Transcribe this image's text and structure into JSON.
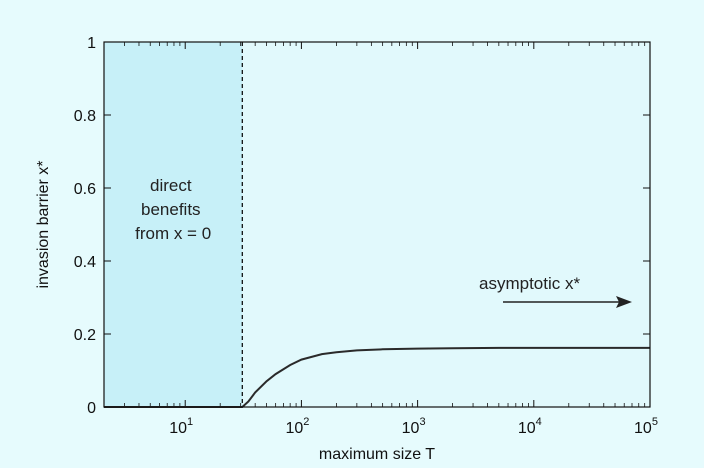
{
  "chart_data": {
    "type": "line",
    "title": "",
    "xlabel": "maximum size T",
    "ylabel": "invasion barrier x*",
    "x_scale": "log",
    "xlim": [
      2,
      100000
    ],
    "ylim": [
      0,
      1
    ],
    "x_ticks": [
      {
        "value": 10,
        "base": "10",
        "exp": "1"
      },
      {
        "value": 100,
        "base": "10",
        "exp": "2"
      },
      {
        "value": 1000,
        "base": "10",
        "exp": "3"
      },
      {
        "value": 10000,
        "base": "10",
        "exp": "4"
      },
      {
        "value": 100000,
        "base": "10",
        "exp": "5"
      }
    ],
    "y_ticks": [
      "0",
      "0.2",
      "0.4",
      "0.6",
      "0.8",
      "1"
    ],
    "grid": false,
    "series": [
      {
        "x": [
          2,
          5,
          10,
          20,
          31,
          35,
          40,
          50,
          60,
          80,
          100,
          150,
          200,
          300,
          500,
          1000,
          2000,
          5000,
          10000,
          100000
        ],
        "y": [
          0,
          0,
          0,
          0,
          0,
          0.015,
          0.04,
          0.07,
          0.09,
          0.115,
          0.13,
          0.145,
          0.15,
          0.155,
          0.158,
          0.16,
          0.161,
          0.162,
          0.162,
          0.162
        ]
      }
    ],
    "shaded_region": {
      "x_from": 2,
      "x_to": 31,
      "color": "#c7f0f8"
    },
    "threshold_line": {
      "x": 31,
      "style": "dashed"
    },
    "annotations": {
      "region_label": [
        "direct",
        "benefits",
        "from x = 0"
      ],
      "asymptote_label": "asymptotic x*"
    },
    "colors": {
      "background": "#e6fbfd",
      "plot_area": "#e1f9fc",
      "shaded": "#c7f0f8",
      "line": "#2a2a2a"
    }
  }
}
